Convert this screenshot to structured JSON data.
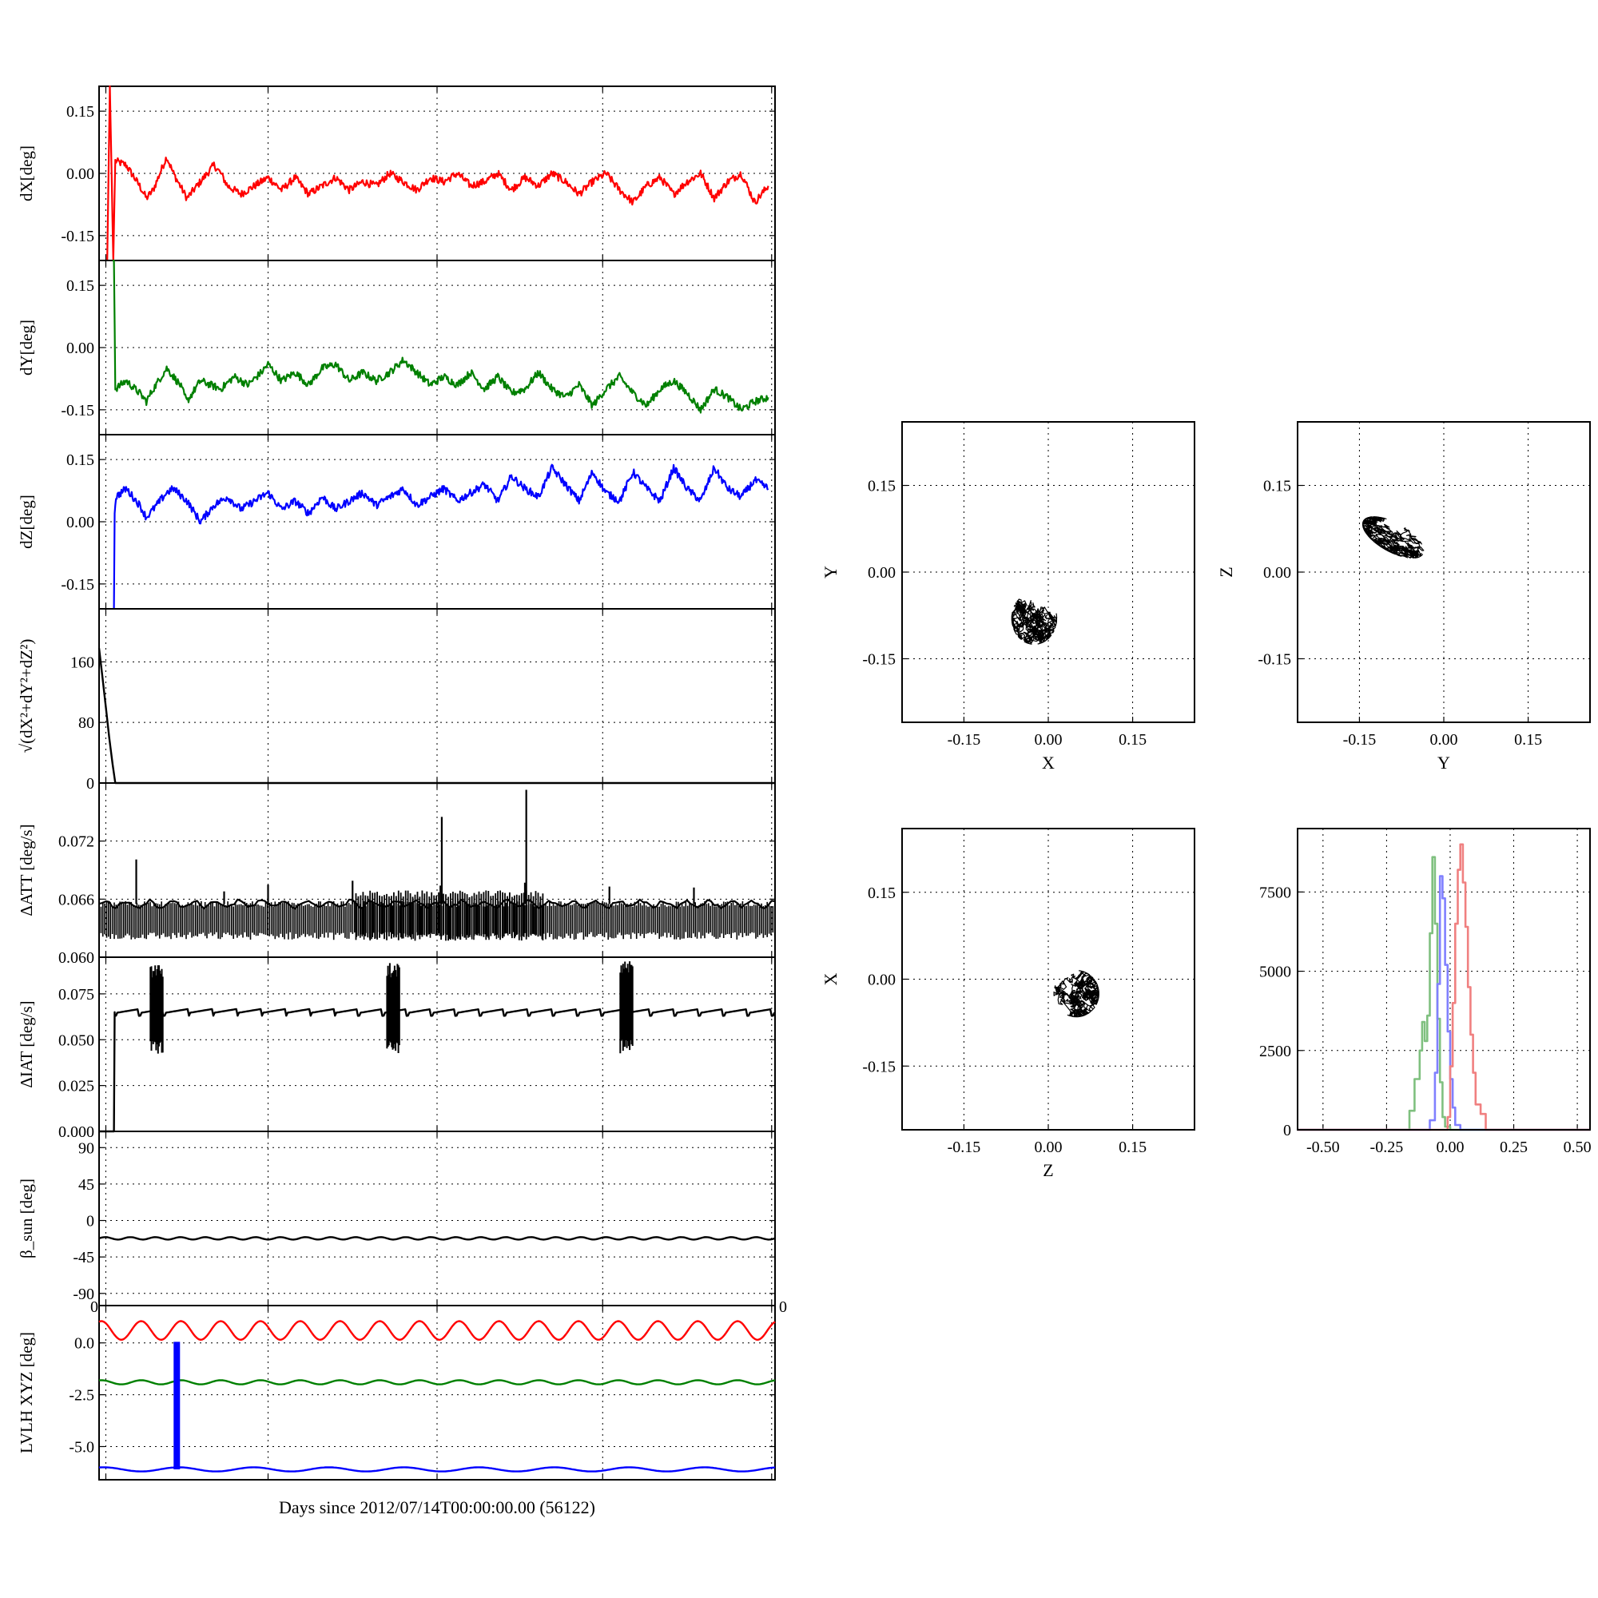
{
  "colors": {
    "x": "#ff0000",
    "y": "#008000",
    "z": "#0000ff",
    "k": "#000000",
    "hist_x": "#f08080",
    "hist_y": "#7fc07f",
    "hist_z": "#8080ff"
  },
  "xlabel": "Days since 2012/07/14T00:00:00.00 (56122)",
  "chart_data": [
    {
      "id": "dx",
      "type": "line",
      "ylabel": "dX[deg]",
      "ylim": [
        -0.21,
        0.21
      ],
      "yticks": [
        0.15,
        0.0,
        -0.15
      ],
      "ytick_labels": [
        "0.15",
        "0.00",
        "-0.15"
      ],
      "xlim": [
        0,
        100
      ],
      "grid": true,
      "series": [
        {
          "color": "#ff0000",
          "x": [
            1.2,
            1.6,
            2.1,
            2.4,
            4,
            6,
            7,
            8,
            10,
            11,
            12,
            13,
            15,
            17,
            18,
            19,
            21,
            23,
            25,
            27,
            29,
            31,
            33,
            35,
            37,
            39,
            41,
            43,
            45,
            47,
            49,
            51,
            53,
            55,
            57,
            59,
            61,
            63,
            65,
            67,
            69,
            71,
            73,
            75,
            77,
            79,
            81,
            83,
            85,
            87,
            89,
            91,
            93,
            95,
            97,
            99
          ],
          "y": [
            -0.21,
            0.21,
            -0.21,
            0.03,
            0.02,
            -0.03,
            -0.06,
            -0.04,
            0.04,
            0.0,
            -0.03,
            -0.06,
            -0.02,
            0.02,
            0.0,
            -0.03,
            -0.05,
            -0.03,
            -0.01,
            -0.04,
            -0.01,
            -0.05,
            -0.03,
            -0.01,
            -0.04,
            -0.02,
            -0.03,
            0.0,
            -0.02,
            -0.04,
            -0.01,
            -0.02,
            0.0,
            -0.03,
            -0.02,
            0.0,
            -0.04,
            -0.01,
            -0.03,
            0.0,
            -0.02,
            -0.05,
            -0.02,
            0.0,
            -0.04,
            -0.07,
            -0.03,
            -0.01,
            -0.05,
            -0.02,
            0.0,
            -0.06,
            -0.02,
            0.0,
            -0.07,
            -0.03
          ]
        }
      ]
    },
    {
      "id": "dy",
      "type": "line",
      "ylabel": "dY[deg]",
      "ylim": [
        -0.21,
        0.21
      ],
      "yticks": [
        0.15,
        0.0,
        -0.15
      ],
      "ytick_labels": [
        "0.15",
        "0.00",
        "-0.15"
      ],
      "xlim": [
        0,
        100
      ],
      "grid": true,
      "series": [
        {
          "color": "#008000",
          "x": [
            2.0,
            2.2,
            2.4,
            4,
            6,
            7,
            8,
            10,
            12,
            13,
            15,
            18,
            20,
            22,
            24,
            25,
            27,
            29,
            31,
            33,
            35,
            37,
            39,
            41,
            43,
            45,
            47,
            49,
            51,
            53,
            55,
            57,
            59,
            61,
            63,
            65,
            67,
            69,
            71,
            73,
            75,
            77,
            79,
            81,
            83,
            85,
            87,
            89,
            91,
            93,
            95,
            97,
            99
          ],
          "y": [
            0.21,
            0.21,
            -0.1,
            -0.08,
            -0.11,
            -0.13,
            -0.1,
            -0.05,
            -0.09,
            -0.13,
            -0.08,
            -0.1,
            -0.07,
            -0.09,
            -0.06,
            -0.04,
            -0.08,
            -0.06,
            -0.09,
            -0.05,
            -0.04,
            -0.08,
            -0.06,
            -0.08,
            -0.06,
            -0.03,
            -0.06,
            -0.09,
            -0.07,
            -0.09,
            -0.06,
            -0.1,
            -0.07,
            -0.11,
            -0.1,
            -0.06,
            -0.1,
            -0.12,
            -0.09,
            -0.14,
            -0.1,
            -0.07,
            -0.11,
            -0.14,
            -0.1,
            -0.08,
            -0.11,
            -0.15,
            -0.1,
            -0.12,
            -0.15,
            -0.13,
            -0.12
          ]
        }
      ]
    },
    {
      "id": "dz",
      "type": "line",
      "ylabel": "dZ[deg]",
      "ylim": [
        -0.21,
        0.21
      ],
      "yticks": [
        0.15,
        0.0,
        -0.15
      ],
      "ytick_labels": [
        "0.15",
        "0.00",
        "-0.15"
      ],
      "xlim": [
        0,
        100
      ],
      "grid": true,
      "series": [
        {
          "color": "#0000ff",
          "x": [
            2.2,
            2.3,
            2.5,
            4,
            6,
            7,
            8,
            10,
            11,
            13,
            15,
            17,
            19,
            21,
            23,
            25,
            27,
            29,
            31,
            33,
            35,
            37,
            39,
            41,
            43,
            45,
            47,
            49,
            51,
            53,
            55,
            57,
            59,
            61,
            63,
            65,
            67,
            69,
            71,
            73,
            75,
            77,
            79,
            81,
            83,
            85,
            87,
            89,
            91,
            93,
            95,
            97,
            99
          ],
          "y": [
            -0.21,
            0.02,
            0.06,
            0.08,
            0.04,
            0.01,
            0.03,
            0.07,
            0.08,
            0.05,
            0.0,
            0.04,
            0.06,
            0.03,
            0.05,
            0.07,
            0.03,
            0.05,
            0.02,
            0.06,
            0.03,
            0.05,
            0.07,
            0.04,
            0.06,
            0.08,
            0.04,
            0.06,
            0.08,
            0.05,
            0.07,
            0.09,
            0.05,
            0.11,
            0.08,
            0.06,
            0.13,
            0.09,
            0.05,
            0.12,
            0.07,
            0.05,
            0.12,
            0.08,
            0.05,
            0.13,
            0.08,
            0.05,
            0.13,
            0.08,
            0.06,
            0.1,
            0.08
          ]
        }
      ]
    },
    {
      "id": "norm",
      "type": "line",
      "ylabel": "√(dX²+dY²+dZ²)",
      "ylim": [
        0,
        230
      ],
      "yticks": [
        160,
        80,
        0
      ],
      "ytick_labels": [
        "160",
        "80",
        "0"
      ],
      "xlim": [
        0,
        100
      ],
      "grid": true,
      "series": [
        {
          "color": "#000000",
          "x": [
            0,
            0.5,
            1.0,
            1.5,
            2.0,
            2.4,
            100
          ],
          "y": [
            178,
            140,
            100,
            60,
            25,
            0,
            0
          ]
        }
      ]
    },
    {
      "id": "datt",
      "type": "line",
      "ylabel": "ΔATT [deg/s]",
      "ylim": [
        0.06,
        0.078
      ],
      "yticks": [
        0.072,
        0.066,
        0.06
      ],
      "ytick_labels": [
        "0.072",
        "0.066",
        "0.060"
      ],
      "xlim": [
        0,
        100
      ],
      "grid": true,
      "band": {
        "color": "#000000",
        "upper": 0.0655,
        "lower": 0.0622
      },
      "spikes": [
        {
          "x": 5.5,
          "y": 0.0701
        },
        {
          "x": 18.5,
          "y": 0.0668
        },
        {
          "x": 25,
          "y": 0.0675
        },
        {
          "x": 37.5,
          "y": 0.0679
        },
        {
          "x": 50.5,
          "y": 0.0674
        },
        {
          "x": 50.7,
          "y": 0.0745
        },
        {
          "x": 63,
          "y": 0.0677
        },
        {
          "x": 63.2,
          "y": 0.0773
        },
        {
          "x": 75.5,
          "y": 0.0673
        },
        {
          "x": 88,
          "y": 0.0672
        }
      ]
    },
    {
      "id": "diat",
      "type": "line",
      "ylabel": "ΔIAT [deg/s]",
      "ylim": [
        0,
        0.095
      ],
      "yticks": [
        0.075,
        0.05,
        0.025,
        0.0
      ],
      "ytick_labels": [
        "0.075",
        "0.050",
        "0.025",
        "0.000"
      ],
      "xlim": [
        0,
        100
      ],
      "grid": true,
      "series": [
        {
          "color": "#000000",
          "x": [
            0,
            2.2,
            2.3,
            100
          ],
          "y": [
            0,
            0,
            0.065,
            0.066
          ]
        }
      ],
      "bursts": [
        {
          "x": 8.5,
          "ymin": 0.042,
          "ymax": 0.091
        },
        {
          "x": 43.5,
          "ymin": 0.042,
          "ymax": 0.092
        },
        {
          "x": 78.0,
          "ymin": 0.042,
          "ymax": 0.093
        }
      ]
    },
    {
      "id": "beta",
      "type": "line",
      "ylabel": "β_sun [deg]",
      "ylim": [
        -105,
        110
      ],
      "yticks": [
        90,
        45,
        0,
        -45,
        -90
      ],
      "ytick_labels": [
        "90",
        "45",
        "0",
        "-45",
        "-90"
      ],
      "xlim": [
        0,
        100
      ],
      "grid": true,
      "series": [
        {
          "color": "#000000",
          "mean": -22,
          "amplitude": 1.5,
          "cycles": 27
        }
      ]
    },
    {
      "id": "lvlh",
      "type": "line",
      "ylabel": "LVLH XYZ [deg]",
      "ylim": [
        -6.6,
        1.8
      ],
      "yticks": [
        0.0,
        -2.5,
        -5.0
      ],
      "ytick_labels": [
        "0.0",
        "-2.5",
        "-5.0"
      ],
      "xlim": [
        0,
        100
      ],
      "grid": true,
      "series": [
        {
          "color": "#ff0000",
          "mean": 0.6,
          "amplitude": 0.45,
          "cycles": 17
        },
        {
          "color": "#008000",
          "mean": -1.9,
          "amplitude": 0.1,
          "cycles": 17
        },
        {
          "color": "#0000ff",
          "mean": -6.1,
          "amplitude": 0.1,
          "cycles": 9
        }
      ],
      "bar": {
        "x": 11.5,
        "y0": -6.1,
        "y1": 0.05,
        "color": "#0000ff"
      },
      "top_labels": [
        "0",
        "0"
      ]
    },
    {
      "id": "xy",
      "type": "scatter",
      "xlabel": "X",
      "ylabel": "Y",
      "xlim": [
        -0.26,
        0.26
      ],
      "ylim": [
        -0.26,
        0.26
      ],
      "ticks": [
        -0.15,
        0.0,
        0.15
      ],
      "tick_labels": [
        "-0.15",
        "0.00",
        "0.15"
      ],
      "grid": true,
      "cloud": {
        "cx": -0.025,
        "cy": -0.08,
        "rx": 0.04,
        "ry": 0.045
      }
    },
    {
      "id": "yz",
      "type": "scatter",
      "xlabel": "Y",
      "ylabel": "Z",
      "xlim": [
        -0.26,
        0.26
      ],
      "ylim": [
        -0.26,
        0.26
      ],
      "ticks": [
        -0.15,
        0.0,
        0.15
      ],
      "tick_labels": [
        "-0.15",
        "0.00",
        "0.15"
      ],
      "grid": true,
      "cloud": {
        "cx": -0.09,
        "cy": 0.06,
        "rx": 0.06,
        "ry": 0.025,
        "tilt": -28
      }
    },
    {
      "id": "zx",
      "type": "scatter",
      "xlabel": "Z",
      "ylabel": "X",
      "xlim": [
        -0.26,
        0.26
      ],
      "ylim": [
        -0.26,
        0.26
      ],
      "ticks": [
        -0.15,
        0.0,
        0.15
      ],
      "tick_labels": [
        "-0.15",
        "0.00",
        "0.15"
      ],
      "grid": true,
      "cloud": {
        "cx": 0.05,
        "cy": -0.025,
        "rx": 0.04,
        "ry": 0.04
      }
    },
    {
      "id": "hist",
      "type": "line",
      "xlim": [
        -0.6,
        0.55
      ],
      "ylim": [
        0,
        9500
      ],
      "xticks": [
        -0.5,
        -0.25,
        0.0,
        0.25,
        0.5
      ],
      "xtick_labels": [
        "-0.50",
        "-0.25",
        "0.00",
        "0.25",
        "0.50"
      ],
      "yticks": [
        7500,
        5000,
        2500,
        0
      ],
      "ytick_labels": [
        "7500",
        "5000",
        "2500",
        "0"
      ],
      "grid": true,
      "series": [
        {
          "color": "#7fc07f",
          "x": [
            -0.6,
            -0.18,
            -0.16,
            -0.14,
            -0.12,
            -0.11,
            -0.1,
            -0.09,
            -0.08,
            -0.07,
            -0.06,
            -0.05,
            -0.04,
            -0.03,
            -0.02,
            0.0,
            0.55
          ],
          "y": [
            0,
            0,
            600,
            1600,
            2500,
            3400,
            2800,
            3600,
            6200,
            8600,
            6500,
            3500,
            1500,
            400,
            100,
            0,
            0
          ]
        },
        {
          "color": "#8080ff",
          "x": [
            -0.6,
            -0.1,
            -0.08,
            -0.06,
            -0.05,
            -0.04,
            -0.03,
            -0.02,
            -0.01,
            0.0,
            0.01,
            0.02,
            0.04,
            0.55
          ],
          "y": [
            0,
            0,
            300,
            1800,
            4600,
            8000,
            7300,
            5200,
            3100,
            1600,
            700,
            150,
            0,
            0
          ]
        },
        {
          "color": "#f08080",
          "x": [
            -0.6,
            -0.02,
            -0.01,
            0.0,
            0.01,
            0.02,
            0.03,
            0.04,
            0.05,
            0.06,
            0.07,
            0.08,
            0.09,
            0.1,
            0.12,
            0.14,
            0.55
          ],
          "y": [
            0,
            0,
            400,
            2000,
            4000,
            6500,
            8200,
            9000,
            7800,
            6400,
            4500,
            3000,
            1800,
            800,
            500,
            0,
            0
          ]
        }
      ]
    }
  ]
}
